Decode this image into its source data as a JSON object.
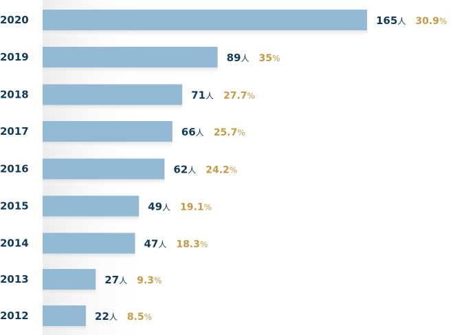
{
  "chart_data": {
    "type": "bar",
    "orientation": "horizontal",
    "categories": [
      "2020",
      "2019",
      "2018",
      "2017",
      "2016",
      "2015",
      "2014",
      "2013",
      "2012"
    ],
    "series": [
      {
        "values": [
          165,
          89,
          71,
          66,
          62,
          49,
          47,
          27,
          22
        ],
        "unit": "人",
        "count_labels": [
          "165",
          "89",
          "71",
          "66",
          "62",
          "49",
          "47",
          "27",
          "22"
        ],
        "percent_labels": [
          "30.9",
          "35",
          "27.7",
          "25.7",
          "24.2",
          "19.1",
          "18.3",
          "9.3",
          "8.5"
        ],
        "percent_values": [
          30.9,
          35,
          27.7,
          25.7,
          24.2,
          19.1,
          18.3,
          9.3,
          8.5
        ]
      }
    ],
    "percent_sign": "%",
    "colors": {
      "bar": "#94b9d5",
      "year_text": "#103a5c",
      "count_text": "#103a5c",
      "percent_text": "#c59a45",
      "shadow": "#e6e6e6"
    },
    "xlim": [
      0,
      165
    ],
    "grid": false,
    "legend": "none"
  }
}
